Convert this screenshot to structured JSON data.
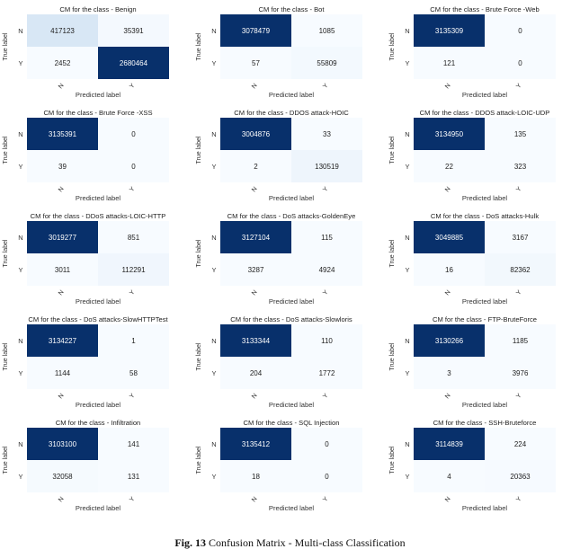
{
  "figure": {
    "caption_label": "Fig. 13",
    "caption_text": "Confusion Matrix - Multi-class Classification"
  },
  "chart_data": [
    {
      "type": "heatmap",
      "title": "CM for the class - Benign",
      "xlabel": "Predicted label",
      "ylabel": "True label",
      "row_labels": [
        "N",
        "Y"
      ],
      "col_labels": [
        "N",
        "Y"
      ],
      "values": [
        [
          417123,
          35391
        ],
        [
          2452,
          2680464
        ]
      ]
    },
    {
      "type": "heatmap",
      "title": "CM for the class - Bot",
      "xlabel": "Predicted label",
      "ylabel": "True label",
      "row_labels": [
        "N",
        "Y"
      ],
      "col_labels": [
        "N",
        "Y"
      ],
      "values": [
        [
          3078479,
          1085
        ],
        [
          57,
          55809
        ]
      ]
    },
    {
      "type": "heatmap",
      "title": "CM for the class - Brute Force -Web",
      "xlabel": "Predicted label",
      "ylabel": "True label",
      "row_labels": [
        "N",
        "Y"
      ],
      "col_labels": [
        "N",
        "Y"
      ],
      "values": [
        [
          3135309,
          0
        ],
        [
          121,
          0
        ]
      ]
    },
    {
      "type": "heatmap",
      "title": "CM for the class - Brute Force -XSS",
      "xlabel": "Predicted label",
      "ylabel": "True label",
      "row_labels": [
        "N",
        "Y"
      ],
      "col_labels": [
        "N",
        "Y"
      ],
      "values": [
        [
          3135391,
          0
        ],
        [
          39,
          0
        ]
      ]
    },
    {
      "type": "heatmap",
      "title": "CM for the class - DDOS attack-HOIC",
      "xlabel": "Predicted label",
      "ylabel": "True label",
      "row_labels": [
        "N",
        "Y"
      ],
      "col_labels": [
        "N",
        "Y"
      ],
      "values": [
        [
          3004876,
          33
        ],
        [
          2,
          130519
        ]
      ]
    },
    {
      "type": "heatmap",
      "title": "CM for the class - DDOS attack-LOIC-UDP",
      "xlabel": "Predicted label",
      "ylabel": "True label",
      "row_labels": [
        "N",
        "Y"
      ],
      "col_labels": [
        "N",
        "Y"
      ],
      "values": [
        [
          3134950,
          135
        ],
        [
          22,
          323
        ]
      ]
    },
    {
      "type": "heatmap",
      "title": "CM for the class - DDoS attacks-LOIC-HTTP",
      "xlabel": "Predicted label",
      "ylabel": "True label",
      "row_labels": [
        "N",
        "Y"
      ],
      "col_labels": [
        "N",
        "Y"
      ],
      "values": [
        [
          3019277,
          851
        ],
        [
          3011,
          112291
        ]
      ]
    },
    {
      "type": "heatmap",
      "title": "CM for the class - DoS attacks-GoldenEye",
      "xlabel": "Predicted label",
      "ylabel": "True label",
      "row_labels": [
        "N",
        "Y"
      ],
      "col_labels": [
        "N",
        "Y"
      ],
      "values": [
        [
          3127104,
          115
        ],
        [
          3287,
          4924
        ]
      ]
    },
    {
      "type": "heatmap",
      "title": "CM for the class - DoS attacks-Hulk",
      "xlabel": "Predicted label",
      "ylabel": "True label",
      "row_labels": [
        "N",
        "Y"
      ],
      "col_labels": [
        "N",
        "Y"
      ],
      "values": [
        [
          3049885,
          3167
        ],
        [
          16,
          82362
        ]
      ]
    },
    {
      "type": "heatmap",
      "title": "CM for the class - DoS attacks-SlowHTTPTest",
      "xlabel": "Predicted label",
      "ylabel": "True label",
      "row_labels": [
        "N",
        "Y"
      ],
      "col_labels": [
        "N",
        "Y"
      ],
      "values": [
        [
          3134227,
          1
        ],
        [
          1144,
          58
        ]
      ]
    },
    {
      "type": "heatmap",
      "title": "CM for the class - DoS attacks-Slowloris",
      "xlabel": "Predicted label",
      "ylabel": "True label",
      "row_labels": [
        "N",
        "Y"
      ],
      "col_labels": [
        "N",
        "Y"
      ],
      "values": [
        [
          3133344,
          110
        ],
        [
          204,
          1772
        ]
      ]
    },
    {
      "type": "heatmap",
      "title": "CM for the class - FTP-BruteForce",
      "xlabel": "Predicted label",
      "ylabel": "True label",
      "row_labels": [
        "N",
        "Y"
      ],
      "col_labels": [
        "N",
        "Y"
      ],
      "values": [
        [
          3130266,
          1185
        ],
        [
          3,
          3976
        ]
      ]
    },
    {
      "type": "heatmap",
      "title": "CM for the class - Infiltration",
      "xlabel": "Predicted label",
      "ylabel": "True label",
      "row_labels": [
        "N",
        "Y"
      ],
      "col_labels": [
        "N",
        "Y"
      ],
      "values": [
        [
          3103100,
          141
        ],
        [
          32058,
          131
        ]
      ]
    },
    {
      "type": "heatmap",
      "title": "CM for the class - SQL Injection",
      "xlabel": "Predicted label",
      "ylabel": "True label",
      "row_labels": [
        "N",
        "Y"
      ],
      "col_labels": [
        "N",
        "Y"
      ],
      "values": [
        [
          3135412,
          0
        ],
        [
          18,
          0
        ]
      ]
    },
    {
      "type": "heatmap",
      "title": "CM for the class - SSH-Bruteforce",
      "xlabel": "Predicted label",
      "ylabel": "True label",
      "row_labels": [
        "N",
        "Y"
      ],
      "col_labels": [
        "N",
        "Y"
      ],
      "values": [
        [
          3114839,
          224
        ],
        [
          4,
          20363
        ]
      ]
    }
  ]
}
